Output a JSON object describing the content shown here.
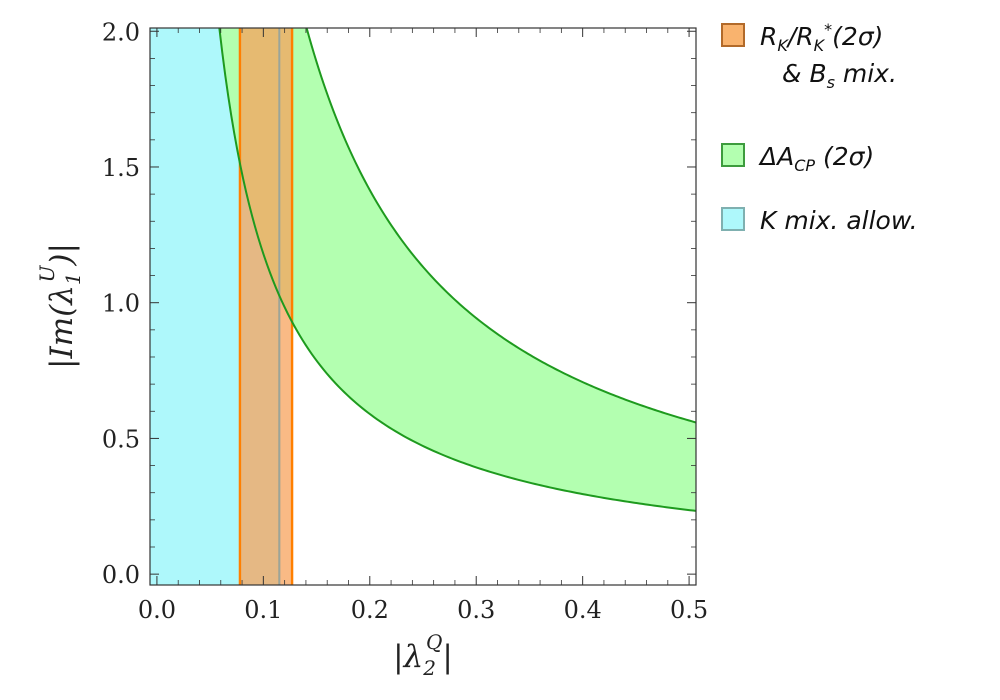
{
  "chart_data": {
    "type": "area",
    "xlabel": {
      "prefix": "|λ",
      "sub": "2",
      "sup": "Q",
      "suffix": "|"
    },
    "ylabel": {
      "prefix": "|Im(λ",
      "sub": "1",
      "sup": "U",
      "suffix": ")|"
    },
    "xlim": [
      0.0,
      0.5
    ],
    "ylim": [
      0.0,
      2.0
    ],
    "xticks": [
      0.0,
      0.1,
      0.2,
      0.3,
      0.4,
      0.5
    ],
    "xtick_labels": [
      "0.0",
      "0.1",
      "0.2",
      "0.3",
      "0.4",
      "0.5"
    ],
    "yticks": [
      0.0,
      0.5,
      1.0,
      1.5,
      2.0
    ],
    "ytick_labels": [
      "0.0",
      "0.5",
      "1.0",
      "1.5",
      "2.0"
    ],
    "grid": false,
    "legend_position": "right",
    "series": [
      {
        "name": "K mix. allow.",
        "kind": "x-band",
        "x_range": [
          0.0,
          0.115
        ],
        "fill": "#aef8fb",
        "edge": "#8fb4b0"
      },
      {
        "name": "R_K/R_K*(2σ) & B_s mix.",
        "kind": "x-band",
        "x_range": [
          0.078,
          0.127
        ],
        "fill": "#f7a35c",
        "fill_opacity": 0.75,
        "edge": "#ff7f00"
      },
      {
        "name": "ΔA_CP (2σ)",
        "kind": "hyperbolic-band",
        "description_constant_lower": 0.118,
        "description_constant_upper": 0.283,
        "fill": "#b3ffb0",
        "edge": "#1e9a1e"
      }
    ],
    "legend": [
      {
        "id": "rk",
        "line1": {
          "R": "R",
          "sub1": "K",
          "slash": "/R",
          "sub2": "K",
          "sup2": "*",
          "tail": "(2σ)"
        },
        "line2": {
          "amp": "& B",
          "sub": "s",
          "tail": " mix."
        },
        "swatch_fill": "#f9b36e",
        "swatch_edge": "#b26a2a"
      },
      {
        "id": "dacp",
        "text_prefix": "ΔA",
        "sub": "CP",
        "tail": " (2σ)",
        "swatch_fill": "#b3ffb0",
        "swatch_edge": "#3d9c3d"
      },
      {
        "id": "kmix",
        "text": "K mix. allow.",
        "swatch_fill": "#aef8fb",
        "swatch_edge": "#7fb0b0"
      }
    ]
  }
}
